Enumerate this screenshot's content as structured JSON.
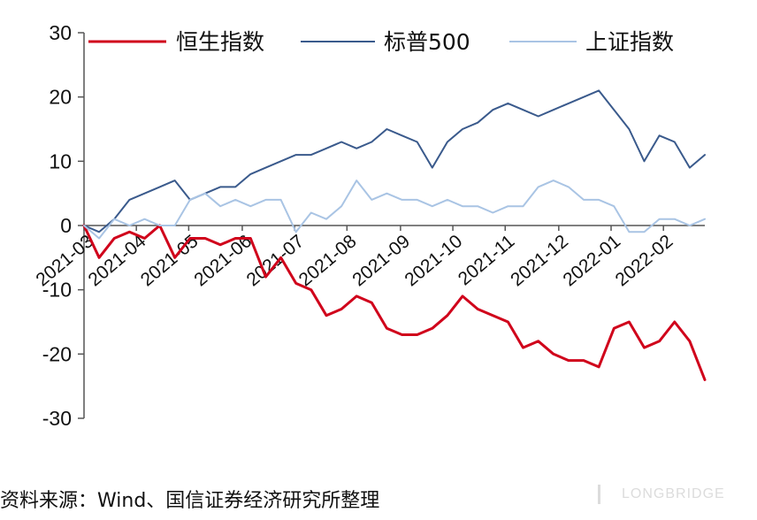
{
  "chart_data": {
    "type": "line",
    "title": "",
    "xlabel": "",
    "ylabel": "",
    "ylim": [
      -30,
      30
    ],
    "yticks": [
      -30,
      -20,
      -10,
      0,
      10,
      20,
      30
    ],
    "xlim": [
      0,
      51
    ],
    "x_ticks": [
      {
        "x": 0,
        "label": "2021-03"
      },
      {
        "x": 4.3,
        "label": "2021-04"
      },
      {
        "x": 8.6,
        "label": "2021-05"
      },
      {
        "x": 13.0,
        "label": "2021-06"
      },
      {
        "x": 17.3,
        "label": "2021-07"
      },
      {
        "x": 21.6,
        "label": "2021-08"
      },
      {
        "x": 26.0,
        "label": "2021-09"
      },
      {
        "x": 30.3,
        "label": "2021-10"
      },
      {
        "x": 34.6,
        "label": "2021-11"
      },
      {
        "x": 39.0,
        "label": "2021-12"
      },
      {
        "x": 43.3,
        "label": "2022-01"
      },
      {
        "x": 47.6,
        "label": "2022-02"
      }
    ],
    "grid": false,
    "legend_position": "top",
    "series": [
      {
        "name": "恒生指数",
        "color": "#d0021b",
        "values": [
          0,
          -5,
          -2,
          -1,
          -2,
          0,
          -5,
          -2,
          -2,
          -3,
          -2,
          -2,
          -8,
          -5,
          -9,
          -10,
          -14,
          -13,
          -11,
          -12,
          -16,
          -17,
          -17,
          -16,
          -14,
          -11,
          -13,
          -14,
          -15,
          -19,
          -18,
          -20,
          -21,
          -21,
          -22,
          -16,
          -15,
          -19,
          -18,
          -15,
          -18,
          -24
        ]
      },
      {
        "name": "标普500",
        "color": "#3a5a8c",
        "values": [
          0,
          -1,
          1,
          4,
          5,
          6,
          7,
          4,
          5,
          6,
          6,
          8,
          9,
          10,
          11,
          11,
          12,
          13,
          12,
          13,
          15,
          14,
          13,
          9,
          13,
          15,
          16,
          18,
          19,
          18,
          17,
          18,
          19,
          20,
          21,
          18,
          15,
          10,
          14,
          13,
          9,
          11
        ]
      },
      {
        "name": "上证指数",
        "color": "#a9c4e4",
        "values": [
          0,
          -2,
          1,
          0,
          1,
          0,
          0,
          4,
          5,
          3,
          4,
          3,
          4,
          4,
          -1,
          2,
          1,
          3,
          7,
          4,
          5,
          4,
          4,
          3,
          4,
          3,
          3,
          2,
          3,
          3,
          6,
          7,
          6,
          4,
          4,
          3,
          -1,
          -1,
          1,
          1,
          0,
          1
        ]
      }
    ]
  },
  "footer": {
    "source": "资料来源：Wind、国信证券经济研究所整理",
    "watermark": "LONGBRIDGE"
  }
}
